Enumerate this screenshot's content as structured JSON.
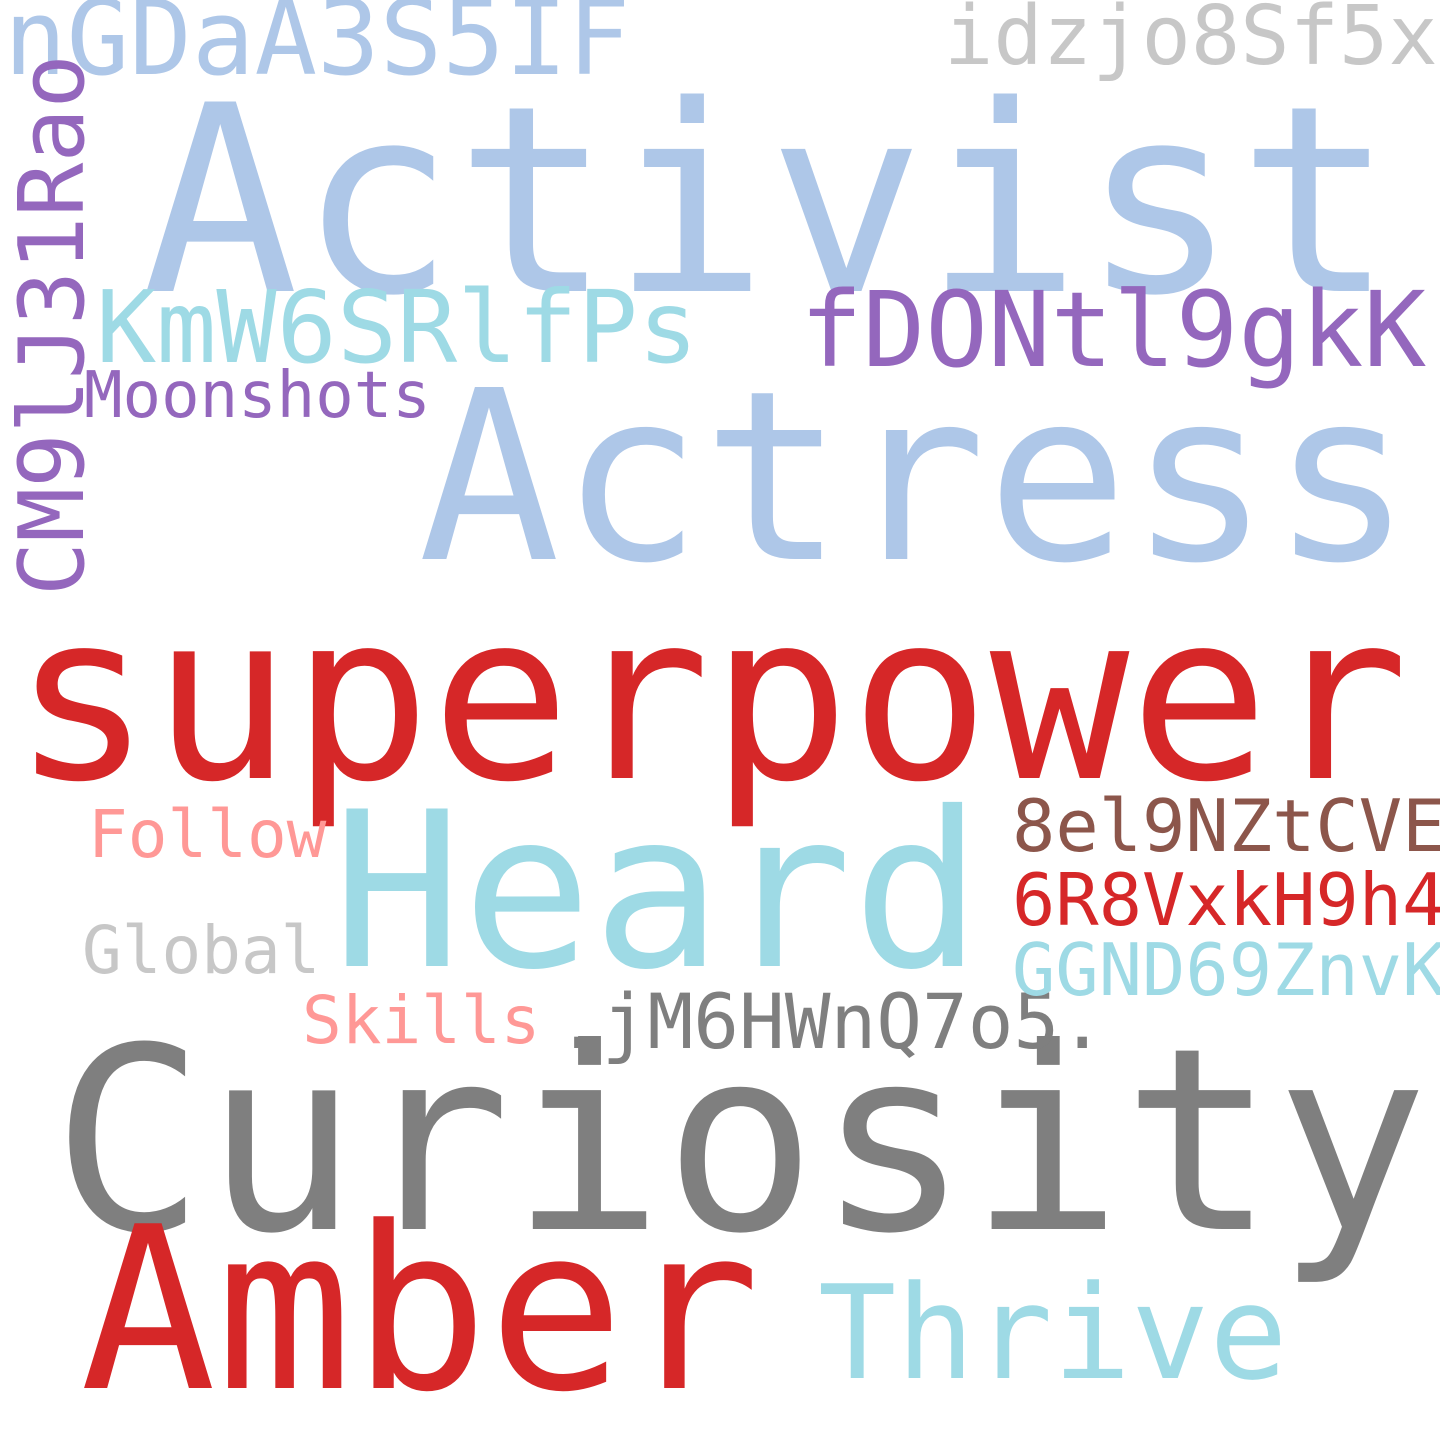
{
  "cloud": {
    "colors": {
      "light_blue": "#aec7e8",
      "cyan": "#9edae5",
      "red": "#d62728",
      "gray": "#7f7f7f",
      "light_gray": "#c7c7c7",
      "purple": "#9467bd",
      "pink": "#ff9896",
      "brown": "#8c564b"
    },
    "words": {
      "activist": "Activist",
      "actress": "Actress",
      "superpower": "superpower",
      "heard": "Heard",
      "curiosity": "Curiosity",
      "amber": "Amber",
      "thrive": "Thrive",
      "ngda": "nGDaA3S5IF",
      "idzjo": "idzjo8Sf5x",
      "kmw6": "KmW6SRlfPs",
      "fdon": "fDONtl9gkK",
      "moonshots": "Moonshots",
      "cm9": "CM9lJ31Rao",
      "follow": "Follow",
      "global": "Global",
      "skills": "Skills",
      "jm6h": ".jM6HWnQ7o5.",
      "el9": "8el9NZtCVE",
      "r8v": "6R8VxkH9h4",
      "ggnd": "GGND69ZnvK"
    }
  }
}
